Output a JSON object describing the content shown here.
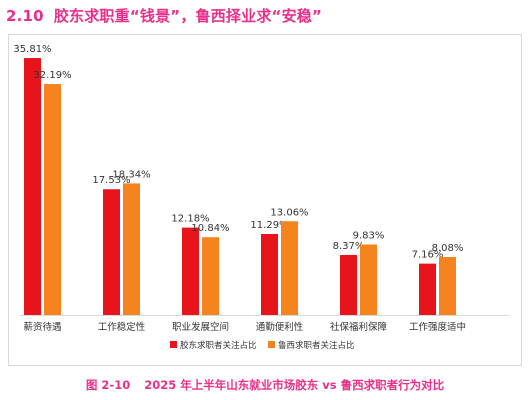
{
  "heading": {
    "number": "2.10",
    "text": "胶东求职重“钱景”，鲁西择业求“安稳”"
  },
  "caption": {
    "figure": "图 2-10",
    "text": "2025 年上半年山东就业市场胶东 vs 鲁西求职者行为对比"
  },
  "chart_data": {
    "type": "bar",
    "categories": [
      "薪资待遇",
      "工作稳定性",
      "职业发展空间",
      "通勤便利性",
      "社保福利保障",
      "工作强度适中"
    ],
    "series": [
      {
        "name": "胶东求职者关注占比",
        "values": [
          35.81,
          17.53,
          12.18,
          11.29,
          8.37,
          7.16
        ],
        "labels": [
          "35.81%",
          "17.53%",
          "12.18%",
          "11.29%",
          "8.37%",
          "7.16%"
        ],
        "color": "#e8141c"
      },
      {
        "name": "鲁西求职者关注占比",
        "values": [
          32.19,
          18.34,
          10.84,
          13.06,
          9.83,
          8.08
        ],
        "labels": [
          "32.19%",
          "18.34%",
          "10.84%",
          "13.06%",
          "9.83%",
          "8.08%"
        ],
        "color": "#f5841f"
      }
    ],
    "ylim": [
      0,
      40
    ],
    "grid": false,
    "legend": "bottom"
  }
}
